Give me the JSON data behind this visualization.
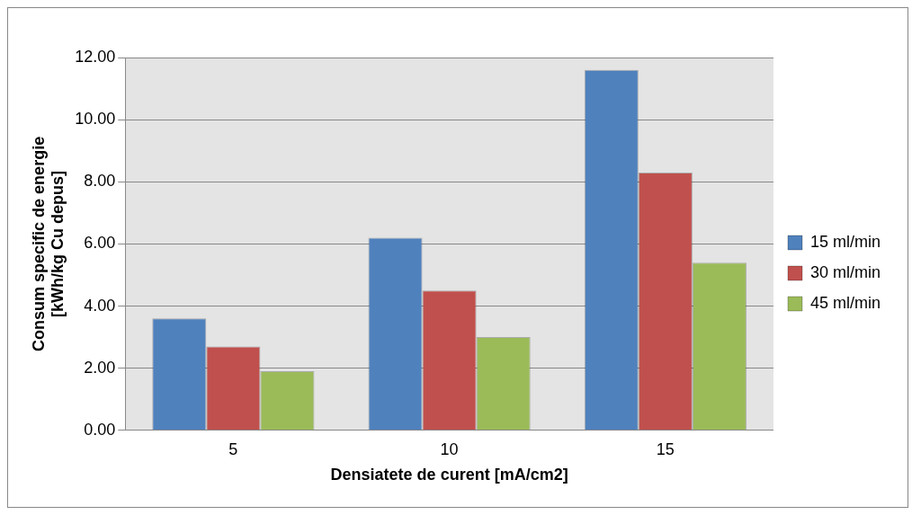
{
  "chart_data": {
    "type": "bar",
    "xlabel": "Densiatete de curent [mA/cm2]",
    "ylabel": "Consum specific de energie [kWh/kg Cu depus]",
    "categories": [
      "5",
      "10",
      "15"
    ],
    "series": [
      {
        "name": "15 ml/min",
        "color": "#4f81bd",
        "values": [
          3.6,
          6.2,
          11.6
        ]
      },
      {
        "name": "30 ml/min",
        "color": "#c0504d",
        "values": [
          2.7,
          4.5,
          8.3
        ]
      },
      {
        "name": "45 ml/min",
        "color": "#9bbb59",
        "values": [
          1.9,
          3.0,
          5.4
        ]
      }
    ],
    "ylim": [
      0,
      12
    ],
    "yticks": [
      {
        "value": 0,
        "label": "0.00"
      },
      {
        "value": 2,
        "label": "2.00"
      },
      {
        "value": 4,
        "label": "4.00"
      },
      {
        "value": 6,
        "label": "6.00"
      },
      {
        "value": 8,
        "label": "8.00"
      },
      {
        "value": 10,
        "label": "10.00"
      },
      {
        "value": 12,
        "label": "12.00"
      }
    ],
    "grid": "y",
    "legend": "right"
  }
}
